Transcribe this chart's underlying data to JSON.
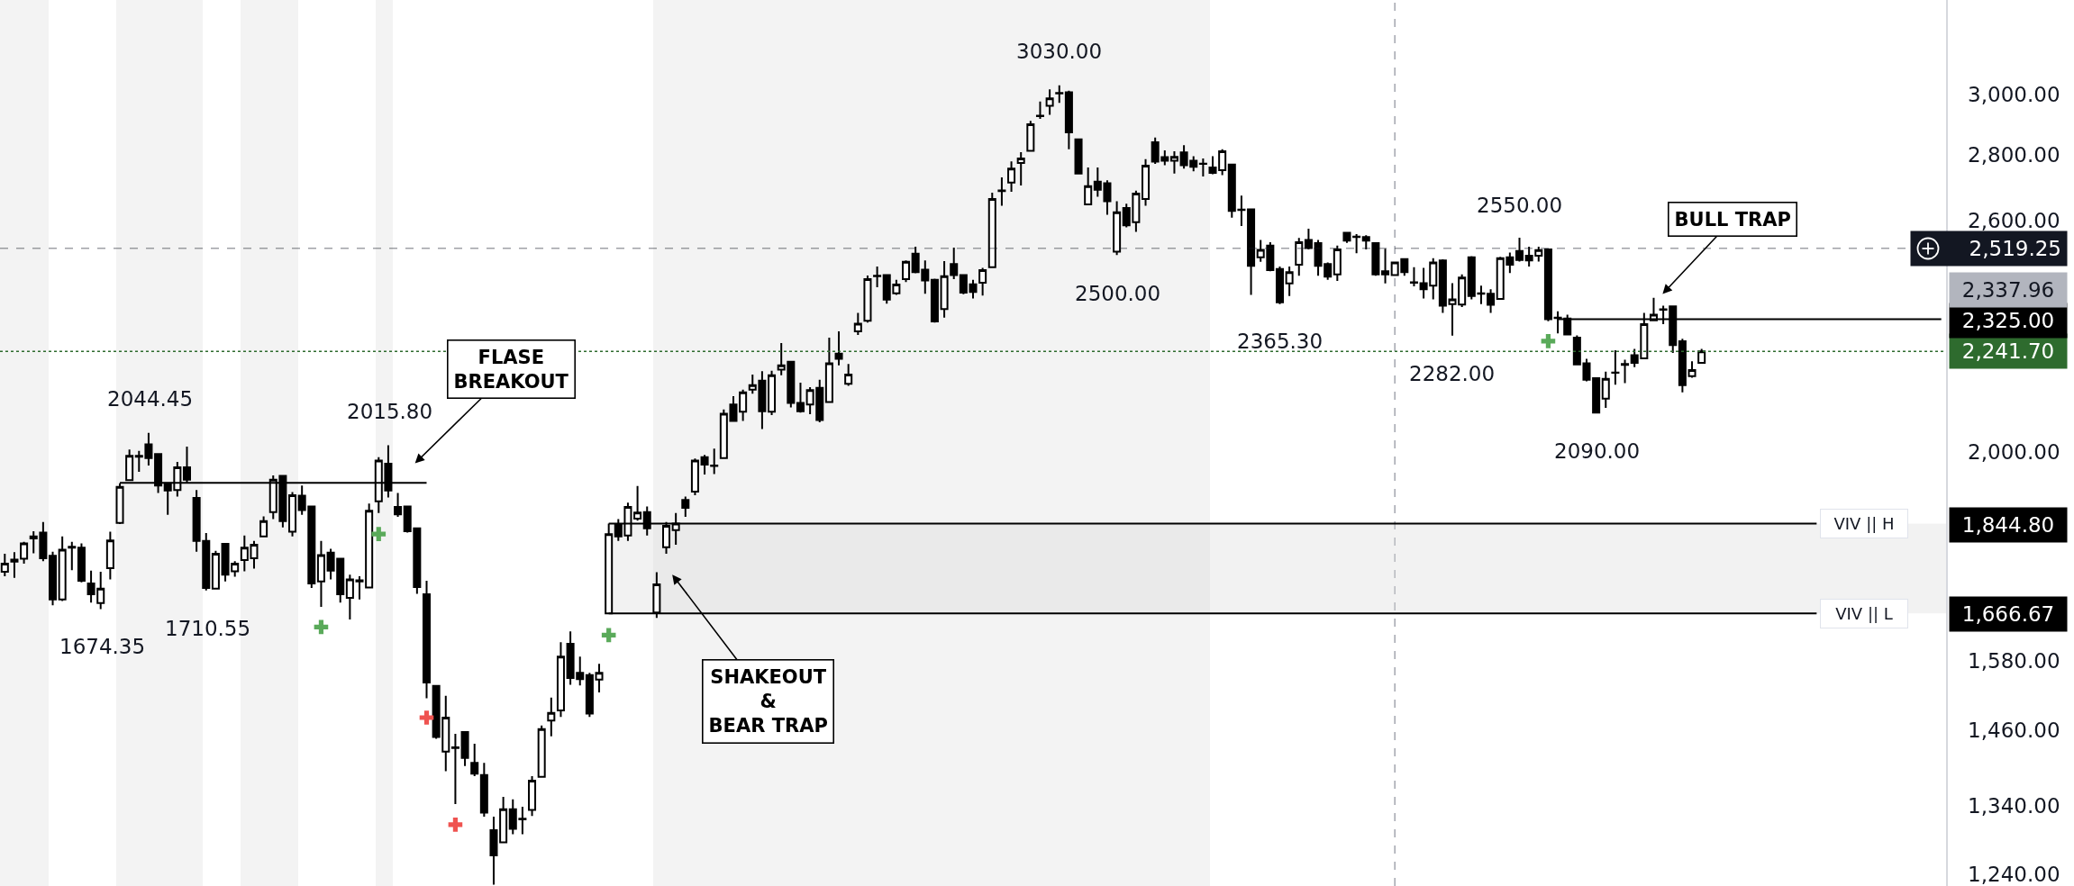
{
  "chart_data": {
    "type": "candlestick",
    "color": "#000000",
    "log": true,
    "tick_labels": "y",
    "ylim": [
      1224,
      3337
    ],
    "yticks": [
      {
        "value": 1240,
        "label": "1,240.00"
      },
      {
        "value": 1340,
        "label": "1,340.00"
      },
      {
        "value": 1460,
        "label": "1,460.00"
      },
      {
        "value": 1580,
        "label": "1,580.00"
      },
      {
        "value": 2000,
        "label": "2,000.00"
      },
      {
        "value": 2600,
        "label": "2,600.00"
      },
      {
        "value": 2800,
        "label": "2,800.00"
      },
      {
        "value": 3000,
        "label": "3,000.00"
      }
    ],
    "categories": [
      null,
      null,
      null,
      null,
      null,
      null,
      null,
      null,
      null,
      null,
      null,
      null,
      null,
      null,
      null,
      null,
      null,
      null,
      null,
      null,
      null,
      null,
      null,
      null,
      null,
      null,
      null,
      null,
      null,
      null,
      null,
      null,
      null,
      null,
      null,
      null,
      null,
      null,
      null,
      null,
      null,
      null,
      null,
      null,
      null,
      null,
      null,
      null,
      null,
      null,
      null,
      null,
      null,
      null,
      null,
      null,
      null,
      null,
      null,
      null,
      null,
      null,
      null,
      null,
      null,
      null,
      null,
      null,
      null,
      null,
      null,
      null,
      null,
      null,
      null,
      null,
      null,
      null,
      null,
      null,
      null,
      null,
      null,
      null,
      null,
      null,
      null,
      null,
      null,
      null,
      null,
      null,
      null,
      null,
      null,
      null,
      null,
      null,
      null,
      null,
      null,
      null,
      null,
      null,
      null,
      null,
      null,
      null,
      null,
      null,
      null,
      null,
      null,
      null,
      null,
      null,
      null,
      null,
      null,
      null,
      null,
      null,
      null,
      null,
      null,
      null,
      null,
      null,
      null,
      null,
      null,
      null,
      null,
      null,
      null,
      null,
      null,
      null,
      null,
      null,
      null,
      null,
      null,
      null,
      null,
      null,
      null,
      null,
      null,
      null,
      null,
      null,
      null,
      null,
      null,
      null,
      null,
      null,
      null,
      null,
      null,
      null,
      null,
      null,
      null,
      null,
      null,
      null,
      null,
      null,
      null,
      null,
      null,
      null,
      null,
      null,
      null,
      null,
      null,
      null,
      null,
      null,
      null,
      null,
      null,
      null,
      null,
      null,
      null,
      null,
      null,
      null,
      null,
      null,
      null,
      null,
      null,
      null,
      null,
      null,
      null,
      null,
      null
    ],
    "ohlc": [
      [
        1747,
        1783,
        1738,
        1763
      ],
      [
        1767,
        1786,
        1735,
        1771
      ],
      [
        1773,
        1807,
        1763,
        1804
      ],
      [
        1814,
        1829,
        1784,
        1818
      ],
      [
        1826,
        1848,
        1768,
        1774
      ],
      [
        1779,
        1787,
        1682,
        1693
      ],
      [
        1693,
        1818,
        1690,
        1791
      ],
      [
        1797,
        1807,
        1750,
        1795
      ],
      [
        1795,
        1804,
        1726,
        1729
      ],
      [
        1724,
        1749,
        1687,
        1703
      ],
      [
        1686,
        1747,
        1674.35,
        1714
      ],
      [
        1754,
        1828,
        1732,
        1810
      ],
      [
        1846,
        1931,
        1844,
        1923
      ],
      [
        1938,
        2006,
        1936,
        1992
      ],
      [
        1990,
        2003,
        1956,
        1992
      ],
      [
        2018,
        2044.45,
        1970,
        1987
      ],
      [
        1996,
        1998,
        1910,
        1926
      ],
      [
        1931,
        1932,
        1863,
        1915
      ],
      [
        1916,
        1978,
        1902,
        1966
      ],
      [
        1966,
        2013,
        1932,
        1939
      ],
      [
        1899,
        1916,
        1787,
        1809
      ],
      [
        1809,
        1825,
        1710.55,
        1715
      ],
      [
        1714,
        1789,
        1712,
        1783
      ],
      [
        1803,
        1804,
        1728,
        1741
      ],
      [
        1748,
        1768,
        1737,
        1763
      ],
      [
        1770,
        1820,
        1748,
        1795
      ],
      [
        1774,
        1809,
        1753,
        1801
      ],
      [
        1818,
        1860,
        1817,
        1850
      ],
      [
        1869,
        1948,
        1854,
        1939
      ],
      [
        1947,
        1948,
        1837,
        1850
      ],
      [
        1828,
        1912,
        1818,
        1905
      ],
      [
        1904,
        1926,
        1863,
        1873
      ],
      [
        1881,
        1883,
        1715,
        1724
      ],
      [
        1728,
        1809,
        1679,
        1780
      ],
      [
        1785,
        1793,
        1732,
        1749
      ],
      [
        1773,
        1774,
        1687,
        1703
      ],
      [
        1696,
        1741,
        1655,
        1732
      ],
      [
        1730,
        1738,
        1693,
        1728
      ],
      [
        1716,
        1887,
        1715,
        1872
      ],
      [
        1892,
        1989,
        1867,
        1981
      ],
      [
        1974,
        2015.8,
        1900,
        1915
      ],
      [
        1880,
        1910,
        1859,
        1864
      ],
      [
        1881,
        1883,
        1826,
        1829
      ],
      [
        1835,
        1837,
        1704,
        1717
      ],
      [
        1703,
        1729,
        1514,
        1541
      ],
      [
        1535,
        1536,
        1446,
        1449
      ],
      [
        1425,
        1518,
        1394,
        1481
      ],
      [
        1432,
        1454,
        1343,
        1431
      ],
      [
        1457,
        1458,
        1402,
        1415
      ],
      [
        1407,
        1438,
        1386,
        1390
      ],
      [
        1388,
        1407,
        1324,
        1330
      ],
      [
        1304,
        1324,
        1226,
        1267
      ],
      [
        1286,
        1354,
        1285,
        1335
      ],
      [
        1335,
        1350,
        1298,
        1306
      ],
      [
        1321,
        1339,
        1298,
        1320
      ],
      [
        1334,
        1386,
        1325,
        1379
      ],
      [
        1385,
        1468,
        1384,
        1462
      ],
      [
        1476,
        1515,
        1450,
        1489
      ],
      [
        1493,
        1613,
        1482,
        1587
      ],
      [
        1610,
        1633,
        1537,
        1549
      ],
      [
        1558,
        1587,
        1536,
        1547
      ],
      [
        1554,
        1558,
        1482,
        1488
      ],
      [
        1546,
        1574,
        1524,
        1558
      ],
      [
        1666.67,
        1844.8,
        1666.67,
        1823
      ],
      [
        1843,
        1854,
        1809,
        1818
      ],
      [
        1820,
        1889,
        1809,
        1880
      ],
      [
        1855,
        1925,
        1851,
        1868
      ],
      [
        1869,
        1881,
        1820,
        1835
      ],
      [
        1668,
        1746,
        1658,
        1722
      ],
      [
        1796,
        1848,
        1783,
        1840
      ],
      [
        1831,
        1867,
        1801,
        1845
      ],
      [
        1895,
        1902,
        1859,
        1878
      ],
      [
        1913,
        1986,
        1905,
        1981
      ],
      [
        1989,
        1994,
        1950,
        1972
      ],
      [
        1970,
        2008,
        1951,
        1969
      ],
      [
        1987,
        2099,
        1986,
        2089
      ],
      [
        2111,
        2131,
        2071,
        2072
      ],
      [
        2094,
        2147,
        2072,
        2140
      ],
      [
        2147,
        2184,
        2137,
        2158
      ],
      [
        2169,
        2192,
        2053,
        2095
      ],
      [
        2094,
        2193,
        2086,
        2182
      ],
      [
        2196,
        2263,
        2182,
        2207
      ],
      [
        2216,
        2217,
        2104,
        2115
      ],
      [
        2115,
        2164,
        2092,
        2095
      ],
      [
        2111,
        2153,
        2088,
        2146
      ],
      [
        2151,
        2171,
        2069,
        2074
      ],
      [
        2117,
        2277,
        2116,
        2212
      ],
      [
        2236,
        2293,
        2207,
        2223
      ],
      [
        2161,
        2210,
        2156,
        2184
      ],
      [
        2293,
        2342,
        2284,
        2313
      ],
      [
        2321,
        2443,
        2316,
        2433
      ],
      [
        2441,
        2468,
        2411,
        2442
      ],
      [
        2444,
        2445,
        2366,
        2377
      ],
      [
        2394,
        2431,
        2390,
        2418
      ],
      [
        2433,
        2485,
        2425,
        2481
      ],
      [
        2504,
        2524,
        2449,
        2452
      ],
      [
        2459,
        2485,
        2393,
        2429
      ],
      [
        2431,
        2434,
        2316,
        2319
      ],
      [
        2352,
        2483,
        2329,
        2441
      ],
      [
        2475,
        2521,
        2433,
        2444
      ],
      [
        2444,
        2445,
        2392,
        2396
      ],
      [
        2419,
        2431,
        2380,
        2398
      ],
      [
        2423,
        2464,
        2388,
        2458
      ],
      [
        2466,
        2683,
        2464,
        2664
      ],
      [
        2688,
        2730,
        2644,
        2690
      ],
      [
        2714,
        2780,
        2686,
        2757
      ],
      [
        2775,
        2809,
        2705,
        2789
      ],
      [
        2813,
        2910,
        2811,
        2899
      ],
      [
        2926,
        2975,
        2917,
        2927
      ],
      [
        2960,
        3016,
        2930,
        2985
      ],
      [
        3002,
        3030,
        2970,
        3004
      ],
      [
        3006,
        3011,
        2818,
        2873
      ],
      [
        2850,
        2851,
        2741,
        2742
      ],
      [
        2648,
        2761,
        2647,
        2703
      ],
      [
        2717,
        2761,
        2671,
        2692
      ],
      [
        2712,
        2721,
        2617,
        2657
      ],
      [
        2510,
        2657,
        2500,
        2624
      ],
      [
        2637,
        2650,
        2580,
        2586
      ],
      [
        2595,
        2689,
        2567,
        2680
      ],
      [
        2664,
        2787,
        2644,
        2766
      ],
      [
        2841,
        2856,
        2772,
        2779
      ],
      [
        2793,
        2815,
        2768,
        2782
      ],
      [
        2782,
        2812,
        2742,
        2794
      ],
      [
        2808,
        2831,
        2757,
        2768
      ],
      [
        2782,
        2796,
        2749,
        2763
      ],
      [
        2773,
        2789,
        2733,
        2772
      ],
      [
        2761,
        2796,
        2740,
        2744
      ],
      [
        2752,
        2818,
        2737,
        2812
      ],
      [
        2770,
        2771,
        2608,
        2628
      ],
      [
        2632,
        2674,
        2584,
        2631
      ],
      [
        2633,
        2634,
        2390,
        2470
      ],
      [
        2494,
        2543,
        2481,
        2515
      ],
      [
        2527,
        2537,
        2455,
        2458
      ],
      [
        2461,
        2468,
        2365.3,
        2370
      ],
      [
        2421,
        2468,
        2387,
        2452
      ],
      [
        2473,
        2549,
        2442,
        2537
      ],
      [
        2543,
        2576,
        2516,
        2520
      ],
      [
        2534,
        2543,
        2442,
        2470
      ],
      [
        2475,
        2479,
        2431,
        2440
      ],
      [
        2446,
        2527,
        2428,
        2516
      ],
      [
        2564,
        2566,
        2535,
        2541
      ],
      [
        2553,
        2560,
        2505,
        2552
      ],
      [
        2552,
        2557,
        2516,
        2541
      ],
      [
        2534,
        2537,
        2442,
        2446
      ],
      [
        2455,
        2518,
        2421,
        2446
      ],
      [
        2444,
        2482,
        2442,
        2479
      ],
      [
        2489,
        2491,
        2442,
        2452
      ],
      [
        2424,
        2466,
        2413,
        2423
      ],
      [
        2422,
        2464,
        2380,
        2405
      ],
      [
        2415,
        2491,
        2378,
        2479
      ],
      [
        2485,
        2488,
        2342,
        2361
      ],
      [
        2365,
        2422,
        2282,
        2378
      ],
      [
        2364,
        2446,
        2357,
        2437
      ],
      [
        2494,
        2497,
        2378,
        2387
      ],
      [
        2393,
        2415,
        2365,
        2394
      ],
      [
        2393,
        2405,
        2342,
        2363
      ],
      [
        2379,
        2495,
        2378,
        2491
      ],
      [
        2494,
        2507,
        2450,
        2473
      ],
      [
        2512,
        2550,
        2482,
        2486
      ],
      [
        2498,
        2524,
        2468,
        2485
      ],
      [
        2498,
        2524,
        2482,
        2514
      ],
      [
        2516,
        2518,
        2320,
        2325
      ],
      [
        2329,
        2346,
        2288,
        2328
      ],
      [
        2327,
        2337,
        2283,
        2285
      ],
      [
        2277,
        2283,
        2207,
        2209
      ],
      [
        2212,
        2223,
        2167,
        2171
      ],
      [
        2175,
        2177,
        2090,
        2092
      ],
      [
        2125,
        2191,
        2103,
        2173
      ],
      [
        2188,
        2245,
        2159,
        2189
      ],
      [
        2208,
        2221,
        2163,
        2210
      ],
      [
        2232,
        2248,
        2202,
        2213
      ],
      [
        2224,
        2342,
        2222,
        2312
      ],
      [
        2322,
        2382,
        2320,
        2337
      ],
      [
        2350,
        2361,
        2312,
        2351
      ],
      [
        2359,
        2360,
        2238,
        2258
      ],
      [
        2268,
        2274,
        2140,
        2158
      ],
      [
        2180,
        2217,
        2176,
        2195
      ],
      [
        2213,
        2248,
        2212,
        2241.7
      ],
      null,
      null,
      null,
      null,
      null,
      null,
      null,
      null,
      null,
      null,
      null,
      null,
      null,
      null,
      null,
      null,
      null,
      null,
      null,
      null,
      null,
      null,
      null,
      null,
      null
    ],
    "series": [
      {
        "type": "scatter",
        "color": "#5aaa5a",
        "marker": "cross",
        "values": [
          null,
          null,
          null,
          null,
          null,
          null,
          null,
          null,
          null,
          null,
          null,
          null,
          null,
          null,
          null,
          null,
          null,
          null,
          null,
          null,
          null,
          null,
          null,
          null,
          null,
          null,
          null,
          null,
          null,
          null,
          null,
          null,
          null,
          1641,
          null,
          null,
          null,
          null,
          null,
          1823,
          null,
          null,
          null,
          null,
          null,
          null,
          null,
          null,
          null,
          null,
          null,
          null,
          null,
          null,
          null,
          null,
          null,
          null,
          null,
          null,
          null,
          null,
          null,
          1626,
          null,
          null,
          null,
          null,
          null,
          null,
          null,
          null,
          null,
          null,
          null,
          null,
          null,
          null,
          null,
          null,
          null,
          null,
          null,
          null,
          null,
          null,
          null,
          null,
          null,
          null,
          null,
          null,
          null,
          null,
          null,
          null,
          null,
          null,
          null,
          null,
          null,
          null,
          null,
          null,
          null,
          null,
          null,
          null,
          null,
          null,
          null,
          null,
          null,
          null,
          null,
          null,
          null,
          null,
          null,
          null,
          null,
          null,
          null,
          null,
          null,
          null,
          null,
          null,
          null,
          null,
          null,
          null,
          null,
          null,
          null,
          null,
          null,
          null,
          null,
          null,
          null,
          null,
          null,
          null,
          null,
          null,
          null,
          null,
          null,
          null,
          null,
          null,
          null,
          null,
          null,
          null,
          null,
          null,
          null,
          null,
          null,
          2268,
          null,
          null,
          null,
          null,
          null,
          null,
          null,
          null,
          null,
          null,
          null,
          null,
          null,
          null,
          null,
          null,
          null,
          null,
          null,
          null,
          null,
          null,
          null,
          null,
          null,
          null,
          null,
          null,
          null,
          null,
          null,
          null,
          null,
          null,
          null,
          null,
          null,
          null,
          null,
          null,
          null
        ]
      },
      {
        "type": "scatter",
        "color": "#ef5350",
        "marker": "cross",
        "values": [
          null,
          null,
          null,
          null,
          null,
          null,
          null,
          null,
          null,
          null,
          null,
          null,
          null,
          null,
          null,
          null,
          null,
          null,
          null,
          null,
          null,
          null,
          null,
          null,
          null,
          null,
          null,
          null,
          null,
          null,
          null,
          null,
          null,
          null,
          null,
          null,
          null,
          null,
          null,
          null,
          null,
          null,
          null,
          null,
          1481,
          null,
          null,
          1312,
          null,
          null,
          null,
          null,
          null,
          null,
          null,
          null,
          null,
          null,
          null,
          null,
          null,
          null,
          null,
          null,
          null,
          null,
          null,
          null,
          null,
          null,
          null,
          null,
          null,
          null,
          null,
          null,
          null,
          null,
          null,
          null,
          null,
          null,
          null,
          null,
          null,
          null,
          null,
          null,
          null,
          null,
          null,
          null,
          null,
          null,
          null,
          null,
          null,
          null,
          null,
          null,
          null,
          null,
          null,
          null,
          null,
          null,
          null,
          null,
          null,
          null,
          null,
          null,
          null,
          null,
          null,
          null,
          null,
          null,
          null,
          null,
          null,
          null,
          null,
          null,
          null,
          null,
          null,
          null,
          null,
          null,
          null,
          null,
          null,
          null,
          null,
          null,
          null,
          null,
          null,
          null,
          null,
          null,
          null,
          null,
          null,
          null,
          null,
          null,
          null,
          null,
          null,
          null,
          null,
          null,
          null,
          null,
          null,
          null,
          null,
          null,
          null,
          null,
          null,
          null,
          null,
          null,
          null,
          null,
          null,
          null,
          null,
          null,
          null,
          null,
          null,
          null,
          null,
          null,
          null,
          null,
          null,
          null,
          null,
          null,
          null,
          null,
          null,
          null,
          null,
          null,
          null,
          null,
          null,
          null,
          null,
          null,
          null,
          null,
          null,
          null,
          null,
          null,
          null
        ]
      },
      {
        "type": "line",
        "color": "#000000",
        "values": [
          null,
          null,
          null,
          null,
          null,
          null,
          null,
          null,
          null,
          null,
          null,
          null,
          1932,
          1932,
          1932,
          1932,
          1932,
          1932,
          1932,
          1932,
          1932,
          1932,
          1932,
          1932,
          1932,
          1932,
          1932,
          1932,
          1932,
          1932,
          1932,
          1932,
          1932,
          1932,
          1932,
          1932,
          1932,
          1932,
          1932,
          1932,
          1932,
          1932,
          1932,
          1932,
          1932,
          null,
          null,
          null,
          null,
          null,
          null,
          null,
          null,
          null,
          null,
          null,
          null,
          null,
          null,
          null,
          null,
          null,
          null,
          null,
          null,
          null,
          null,
          null,
          null,
          null,
          null,
          null,
          null,
          null,
          null,
          null,
          null,
          null,
          null,
          null,
          null,
          null,
          null,
          null,
          null,
          null,
          null,
          null,
          null,
          null,
          null,
          null,
          null,
          null,
          null,
          null,
          null,
          null,
          null,
          null,
          null,
          null,
          null,
          null,
          null,
          null,
          null,
          null,
          null,
          null,
          null,
          null,
          null,
          null,
          null,
          null,
          null,
          null,
          null,
          null,
          null,
          null,
          null,
          null,
          null,
          null,
          null,
          null,
          null,
          null,
          null,
          null,
          null,
          null,
          null,
          null,
          null,
          null,
          null,
          null,
          null,
          null,
          null,
          null,
          null,
          null,
          null,
          null,
          null,
          null,
          null,
          null,
          null,
          null,
          null,
          null,
          null,
          null,
          null,
          null,
          null,
          null,
          null,
          null,
          null,
          null,
          null,
          null,
          null,
          null,
          null,
          null,
          null,
          null,
          null,
          null,
          null,
          null,
          null,
          null,
          null,
          null,
          null,
          null,
          null,
          null,
          null,
          null,
          null,
          null,
          null,
          null,
          null,
          null,
          null,
          null,
          null,
          null,
          null,
          null,
          null,
          null,
          null
        ]
      },
      {
        "type": "line",
        "color": "#000000",
        "values": [
          null,
          null,
          null,
          null,
          null,
          null,
          null,
          null,
          null,
          null,
          null,
          null,
          null,
          null,
          null,
          null,
          null,
          null,
          null,
          null,
          null,
          null,
          null,
          null,
          null,
          null,
          null,
          null,
          null,
          null,
          null,
          null,
          null,
          null,
          null,
          null,
          null,
          null,
          null,
          null,
          null,
          null,
          null,
          null,
          null,
          null,
          null,
          null,
          null,
          null,
          null,
          null,
          null,
          null,
          null,
          null,
          null,
          null,
          null,
          null,
          null,
          null,
          null,
          null,
          null,
          null,
          null,
          null,
          null,
          null,
          null,
          null,
          null,
          null,
          null,
          null,
          null,
          null,
          null,
          null,
          null,
          null,
          null,
          null,
          null,
          null,
          null,
          null,
          null,
          null,
          null,
          null,
          null,
          null,
          null,
          null,
          null,
          null,
          null,
          null,
          null,
          null,
          null,
          null,
          null,
          null,
          null,
          null,
          null,
          null,
          null,
          null,
          null,
          null,
          null,
          null,
          null,
          null,
          null,
          null,
          null,
          null,
          null,
          null,
          null,
          null,
          null,
          null,
          null,
          null,
          null,
          null,
          null,
          null,
          null,
          null,
          null,
          null,
          null,
          null,
          null,
          null,
          null,
          null,
          null,
          null,
          null,
          null,
          null,
          null,
          null,
          null,
          null,
          null,
          null,
          null,
          null,
          null,
          null,
          null,
          null,
          null,
          2325,
          2325,
          2325,
          2325,
          2325,
          2325,
          2325,
          2325,
          2325,
          2325,
          2325,
          2325,
          2325,
          2325,
          2325,
          2325,
          2325,
          2325,
          2325,
          2325,
          2325,
          2325,
          2325,
          2325,
          2325,
          2325,
          2325,
          2325,
          2325,
          2325,
          2325,
          2325,
          2325,
          2325,
          2325,
          2325,
          2325,
          2325,
          2325,
          2325,
          2325
        ]
      },
      {
        "type": "line",
        "name": "VIV || H",
        "color": "#000000",
        "values": [
          null,
          null,
          null,
          null,
          null,
          null,
          null,
          null,
          null,
          null,
          null,
          null,
          null,
          null,
          null,
          null,
          null,
          null,
          null,
          null,
          null,
          null,
          null,
          null,
          null,
          null,
          null,
          null,
          null,
          null,
          null,
          null,
          null,
          null,
          null,
          null,
          null,
          null,
          null,
          null,
          null,
          null,
          null,
          null,
          null,
          null,
          null,
          null,
          null,
          null,
          null,
          null,
          null,
          null,
          null,
          null,
          null,
          null,
          null,
          null,
          null,
          null,
          null,
          1844.8,
          1844.8,
          1844.8,
          1844.8,
          1844.8,
          1844.8,
          1844.8,
          1844.8,
          1844.8,
          1844.8,
          1844.8,
          1844.8,
          1844.8,
          1844.8,
          1844.8,
          1844.8,
          1844.8,
          1844.8,
          1844.8,
          1844.8,
          1844.8,
          1844.8,
          1844.8,
          1844.8,
          1844.8,
          1844.8,
          1844.8,
          1844.8,
          1844.8,
          1844.8,
          1844.8,
          1844.8,
          1844.8,
          1844.8,
          1844.8,
          1844.8,
          1844.8,
          1844.8,
          1844.8,
          1844.8,
          1844.8,
          1844.8,
          1844.8,
          1844.8,
          1844.8,
          1844.8,
          1844.8,
          1844.8,
          1844.8,
          1844.8,
          1844.8,
          1844.8,
          1844.8,
          1844.8,
          1844.8,
          1844.8,
          1844.8,
          1844.8,
          1844.8,
          1844.8,
          1844.8,
          1844.8,
          1844.8,
          1844.8,
          1844.8,
          1844.8,
          1844.8,
          1844.8,
          1844.8,
          1844.8,
          1844.8,
          1844.8,
          1844.8,
          1844.8,
          1844.8,
          1844.8,
          1844.8,
          1844.8,
          1844.8,
          1844.8,
          1844.8,
          1844.8,
          1844.8,
          1844.8,
          1844.8,
          1844.8,
          1844.8,
          1844.8,
          1844.8,
          1844.8,
          1844.8,
          1844.8,
          1844.8,
          1844.8,
          1844.8,
          1844.8,
          1844.8,
          1844.8,
          1844.8,
          1844.8,
          1844.8,
          1844.8,
          1844.8,
          1844.8,
          1844.8,
          1844.8,
          1844.8,
          1844.8,
          1844.8,
          1844.8,
          1844.8,
          1844.8,
          1844.8,
          1844.8,
          1844.8,
          1844.8,
          1844.8,
          1844.8,
          1844.8,
          1844.8,
          1844.8,
          1844.8,
          1844.8,
          1844.8,
          1844.8,
          1844.8,
          1844.8,
          null,
          null,
          null,
          null,
          null,
          null,
          null,
          null,
          null,
          null,
          null,
          null,
          null
        ]
      },
      {
        "type": "line",
        "name": "VIV || L",
        "color": "#000000",
        "values": [
          null,
          null,
          null,
          null,
          null,
          null,
          null,
          null,
          null,
          null,
          null,
          null,
          null,
          null,
          null,
          null,
          null,
          null,
          null,
          null,
          null,
          null,
          null,
          null,
          null,
          null,
          null,
          null,
          null,
          null,
          null,
          null,
          null,
          null,
          null,
          null,
          null,
          null,
          null,
          null,
          null,
          null,
          null,
          null,
          null,
          null,
          null,
          null,
          null,
          null,
          null,
          null,
          null,
          null,
          null,
          null,
          null,
          null,
          null,
          null,
          null,
          null,
          null,
          1666.67,
          1666.67,
          1666.67,
          1666.67,
          1666.67,
          1666.67,
          1666.67,
          1666.67,
          1666.67,
          1666.67,
          1666.67,
          1666.67,
          1666.67,
          1666.67,
          1666.67,
          1666.67,
          1666.67,
          1666.67,
          1666.67,
          1666.67,
          1666.67,
          1666.67,
          1666.67,
          1666.67,
          1666.67,
          1666.67,
          1666.67,
          1666.67,
          1666.67,
          1666.67,
          1666.67,
          1666.67,
          1666.67,
          1666.67,
          1666.67,
          1666.67,
          1666.67,
          1666.67,
          1666.67,
          1666.67,
          1666.67,
          1666.67,
          1666.67,
          1666.67,
          1666.67,
          1666.67,
          1666.67,
          1666.67,
          1666.67,
          1666.67,
          1666.67,
          1666.67,
          1666.67,
          1666.67,
          1666.67,
          1666.67,
          1666.67,
          1666.67,
          1666.67,
          1666.67,
          1666.67,
          1666.67,
          1666.67,
          1666.67,
          1666.67,
          1666.67,
          1666.67,
          1666.67,
          1666.67,
          1666.67,
          1666.67,
          1666.67,
          1666.67,
          1666.67,
          1666.67,
          1666.67,
          1666.67,
          1666.67,
          1666.67,
          1666.67,
          1666.67,
          1666.67,
          1666.67,
          1666.67,
          1666.67,
          1666.67,
          1666.67,
          1666.67,
          1666.67,
          1666.67,
          1666.67,
          1666.67,
          1666.67,
          1666.67,
          1666.67,
          1666.67,
          1666.67,
          1666.67,
          1666.67,
          1666.67,
          1666.67,
          1666.67,
          1666.67,
          1666.67,
          1666.67,
          1666.67,
          1666.67,
          1666.67,
          1666.67,
          1666.67,
          1666.67,
          1666.67,
          1666.67,
          1666.67,
          1666.67,
          1666.67,
          1666.67,
          1666.67,
          1666.67,
          1666.67,
          1666.67,
          1666.67,
          1666.67,
          1666.67,
          1666.67,
          1666.67,
          1666.67,
          null,
          null,
          null,
          null,
          null,
          null,
          null,
          null,
          null,
          null,
          null,
          null,
          null
        ]
      }
    ],
    "bands": [
      {
        "axis": "y",
        "from": 1666.67,
        "to": 1844.8,
        "color": "#d9d9d9"
      }
    ],
    "ref_lines": [
      {
        "axis": "y",
        "value": 2519.25,
        "label": "2,519.25",
        "line_style": "dashed",
        "color": "#131722"
      },
      {
        "axis": "y",
        "value": 2241.7,
        "label": "2,241.70",
        "line_style": "dotted",
        "color": "#2e6b2e"
      }
    ],
    "annotations": [
      "3030.00",
      "2044.45",
      "2015.80",
      "1674.35",
      "1710.55",
      "2500.00",
      "2365.30",
      "2282.00",
      "2550.00",
      "2090.00",
      "2,325.00",
      "1,844.80",
      "1,666.67",
      "2,337.96",
      "FLASE\nBREAKOUT",
      "SHAKEOUT\n&\nBEAR TRAP",
      "BULL TRAP"
    ]
  }
}
